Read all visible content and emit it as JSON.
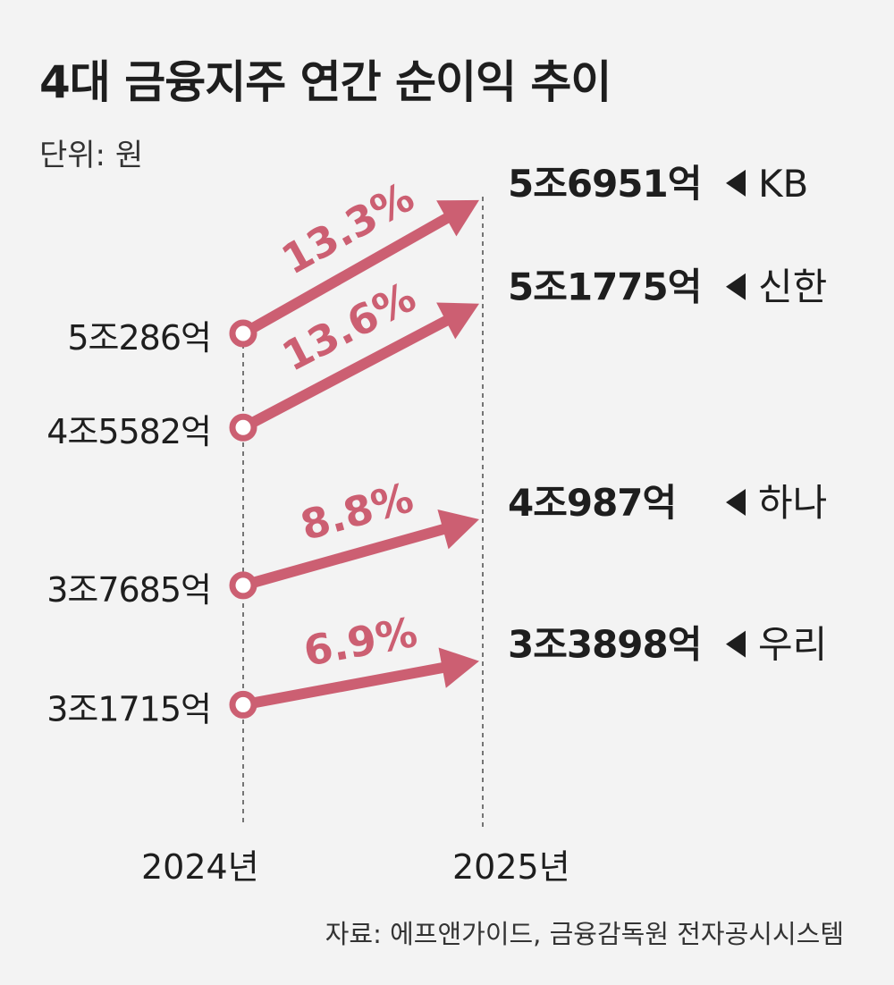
{
  "title": "4대 금융지주 연간 순이익 추이",
  "unit_label": "단위: 원",
  "source": "자료: 에프앤가이드, 금융감독원 전자공시시스템",
  "colors": {
    "accent": "#cc5f72",
    "text": "#1e1e1e",
    "guide": "#555555"
  },
  "chart_data": {
    "type": "line",
    "x": [
      "2024년",
      "2025년"
    ],
    "series": [
      {
        "name": "KB",
        "values": [
          50286,
          56951
        ],
        "labels": [
          "5조286억",
          "5조6951억"
        ],
        "change": "13.3%"
      },
      {
        "name": "신한",
        "values": [
          45582,
          51775
        ],
        "labels": [
          "4조5582억",
          "5조1775억"
        ],
        "change": "13.6%"
      },
      {
        "name": "하나",
        "values": [
          37685,
          40987
        ],
        "labels": [
          "3조7685억",
          "4조987억"
        ],
        "change": "8.8%"
      },
      {
        "name": "우리",
        "values": [
          31715,
          33898
        ],
        "labels": [
          "3조1715억",
          "3조3898억"
        ],
        "change": "6.9%"
      }
    ],
    "value_unit": "억원",
    "grid": false,
    "legend": "inline-right"
  }
}
